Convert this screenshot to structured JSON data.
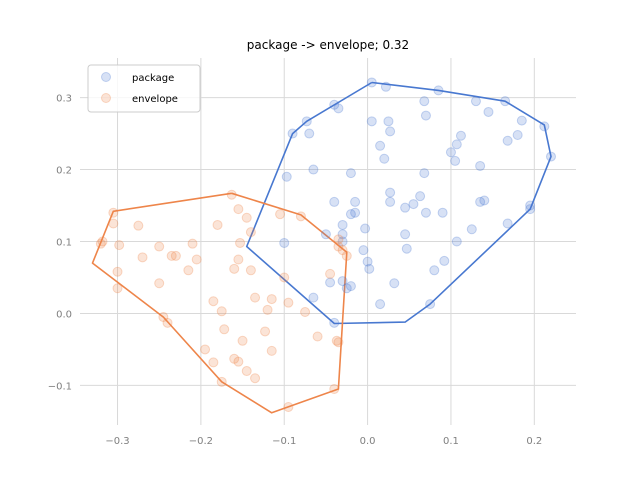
{
  "chart_data": {
    "type": "scatter",
    "title": "package -> envelope; 0.32",
    "xlabel": "",
    "ylabel": "",
    "xlim": [
      -0.345,
      0.25
    ],
    "ylim": [
      -0.155,
      0.355
    ],
    "xticks": [
      -0.3,
      -0.2,
      -0.1,
      0.0,
      0.1,
      0.2
    ],
    "xtick_labels": [
      "−0.3",
      "−0.2",
      "−0.1",
      "0.0",
      "0.1",
      "0.2"
    ],
    "yticks": [
      -0.1,
      0.0,
      0.1,
      0.2,
      0.3
    ],
    "ytick_labels": [
      "−0.1",
      "0.0",
      "0.1",
      "0.2",
      "0.3"
    ],
    "grid": true,
    "legend": {
      "position": "top-left",
      "entries": [
        "package",
        "envelope"
      ]
    },
    "series": [
      {
        "name": "package",
        "color": "#4878d0",
        "points": [
          [
            0.005,
            0.321
          ],
          [
            0.022,
            0.315
          ],
          [
            0.085,
            0.31
          ],
          [
            0.068,
            0.295
          ],
          [
            0.13,
            0.295
          ],
          [
            0.165,
            0.295
          ],
          [
            -0.04,
            0.29
          ],
          [
            -0.035,
            0.285
          ],
          [
            -0.073,
            0.267
          ],
          [
            0.005,
            0.267
          ],
          [
            0.025,
            0.267
          ],
          [
            0.07,
            0.275
          ],
          [
            0.145,
            0.28
          ],
          [
            0.185,
            0.268
          ],
          [
            -0.09,
            0.25
          ],
          [
            -0.07,
            0.25
          ],
          [
            0.027,
            0.253
          ],
          [
            0.112,
            0.247
          ],
          [
            0.18,
            0.248
          ],
          [
            0.212,
            0.26
          ],
          [
            0.015,
            0.233
          ],
          [
            0.107,
            0.235
          ],
          [
            0.168,
            0.24
          ],
          [
            0.1,
            0.224
          ],
          [
            0.22,
            0.218
          ],
          [
            0.02,
            0.215
          ],
          [
            0.105,
            0.212
          ],
          [
            0.135,
            0.205
          ],
          [
            -0.065,
            0.2
          ],
          [
            -0.02,
            0.195
          ],
          [
            0.068,
            0.195
          ],
          [
            -0.097,
            0.19
          ],
          [
            0.027,
            0.168
          ],
          [
            0.063,
            0.163
          ],
          [
            0.045,
            0.147
          ],
          [
            0.027,
            0.155
          ],
          [
            0.055,
            0.152
          ],
          [
            -0.04,
            0.155
          ],
          [
            -0.015,
            0.155
          ],
          [
            0.135,
            0.155
          ],
          [
            0.14,
            0.157
          ],
          [
            0.195,
            0.15
          ],
          [
            0.195,
            0.145
          ],
          [
            -0.015,
            0.14
          ],
          [
            -0.02,
            0.138
          ],
          [
            0.07,
            0.14
          ],
          [
            0.09,
            0.14
          ],
          [
            -0.03,
            0.123
          ],
          [
            -0.003,
            0.118
          ],
          [
            0.125,
            0.117
          ],
          [
            0.168,
            0.125
          ],
          [
            -0.05,
            0.11
          ],
          [
            0.045,
            0.11
          ],
          [
            -0.03,
            0.11
          ],
          [
            -0.1,
            0.098
          ],
          [
            -0.03,
            0.1
          ],
          [
            0.107,
            0.1
          ],
          [
            -0.005,
            0.088
          ],
          [
            0.047,
            0.09
          ],
          [
            0.0,
            0.072
          ],
          [
            0.092,
            0.073
          ],
          [
            0.002,
            0.062
          ],
          [
            0.08,
            0.06
          ],
          [
            -0.03,
            0.045
          ],
          [
            -0.045,
            0.043
          ],
          [
            -0.02,
            0.038
          ],
          [
            -0.025,
            0.035
          ],
          [
            0.032,
            0.042
          ],
          [
            -0.065,
            0.022
          ],
          [
            0.015,
            0.013
          ],
          [
            0.075,
            0.013
          ],
          [
            -0.04,
            -0.013
          ]
        ],
        "hull": [
          [
            0.005,
            0.321
          ],
          [
            0.085,
            0.31
          ],
          [
            0.165,
            0.295
          ],
          [
            0.212,
            0.262
          ],
          [
            0.22,
            0.218
          ],
          [
            0.195,
            0.145
          ],
          [
            0.075,
            0.013
          ],
          [
            0.045,
            -0.012
          ],
          [
            -0.04,
            -0.014
          ],
          [
            -0.145,
            0.093
          ],
          [
            -0.09,
            0.25
          ],
          [
            -0.073,
            0.267
          ]
        ]
      },
      {
        "name": "envelope",
        "color": "#ee854a",
        "points": [
          [
            -0.163,
            0.165
          ],
          [
            -0.155,
            0.145
          ],
          [
            -0.305,
            0.14
          ],
          [
            -0.275,
            0.122
          ],
          [
            -0.305,
            0.125
          ],
          [
            -0.18,
            0.123
          ],
          [
            -0.145,
            0.133
          ],
          [
            -0.14,
            0.113
          ],
          [
            -0.105,
            0.138
          ],
          [
            -0.08,
            0.135
          ],
          [
            -0.318,
            0.1
          ],
          [
            -0.32,
            0.097
          ],
          [
            -0.298,
            0.095
          ],
          [
            -0.25,
            0.093
          ],
          [
            -0.21,
            0.097
          ],
          [
            -0.153,
            0.098
          ],
          [
            -0.035,
            0.103
          ],
          [
            -0.035,
            0.093
          ],
          [
            -0.03,
            0.088
          ],
          [
            -0.025,
            0.08
          ],
          [
            -0.235,
            0.08
          ],
          [
            -0.23,
            0.08
          ],
          [
            -0.27,
            0.078
          ],
          [
            -0.205,
            0.075
          ],
          [
            -0.155,
            0.075
          ],
          [
            -0.16,
            0.062
          ],
          [
            -0.14,
            0.06
          ],
          [
            -0.215,
            0.06
          ],
          [
            -0.3,
            0.058
          ],
          [
            -0.045,
            0.055
          ],
          [
            -0.1,
            0.05
          ],
          [
            -0.25,
            0.042
          ],
          [
            -0.3,
            0.035
          ],
          [
            -0.135,
            0.022
          ],
          [
            -0.115,
            0.02
          ],
          [
            -0.095,
            0.015
          ],
          [
            -0.185,
            0.017
          ],
          [
            -0.075,
            0.002
          ],
          [
            -0.12,
            0.005
          ],
          [
            -0.175,
            0.003
          ],
          [
            -0.245,
            -0.005
          ],
          [
            -0.24,
            -0.013
          ],
          [
            -0.172,
            -0.022
          ],
          [
            -0.123,
            -0.025
          ],
          [
            -0.06,
            -0.032
          ],
          [
            -0.15,
            -0.038
          ],
          [
            -0.037,
            -0.038
          ],
          [
            -0.035,
            -0.04
          ],
          [
            -0.195,
            -0.05
          ],
          [
            -0.115,
            -0.052
          ],
          [
            -0.16,
            -0.063
          ],
          [
            -0.155,
            -0.067
          ],
          [
            -0.185,
            -0.068
          ],
          [
            -0.145,
            -0.08
          ],
          [
            -0.135,
            -0.09
          ],
          [
            -0.175,
            -0.095
          ],
          [
            -0.095,
            -0.13
          ],
          [
            -0.04,
            -0.105
          ]
        ],
        "hull": [
          [
            -0.163,
            0.167
          ],
          [
            -0.08,
            0.137
          ],
          [
            -0.025,
            0.085
          ],
          [
            -0.035,
            -0.105
          ],
          [
            -0.115,
            -0.138
          ],
          [
            -0.175,
            -0.095
          ],
          [
            -0.245,
            -0.005
          ],
          [
            -0.33,
            0.07
          ],
          [
            -0.305,
            0.142
          ]
        ]
      }
    ]
  }
}
